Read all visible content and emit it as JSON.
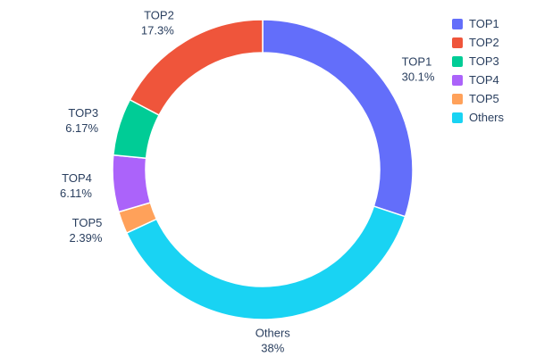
{
  "chart_data": {
    "type": "pie",
    "subtype": "donut",
    "hole": 0.78,
    "labels": [
      "TOP1",
      "TOP2",
      "TOP3",
      "TOP4",
      "TOP5",
      "Others"
    ],
    "values": [
      30.1,
      17.3,
      6.17,
      6.11,
      2.39,
      38
    ],
    "percent_labels": [
      "30.1%",
      "17.3%",
      "6.17%",
      "6.11%",
      "2.39%",
      "38%"
    ],
    "colors": [
      "#636efa",
      "#ef553b",
      "#00cc96",
      "#ab63fa",
      "#ffa15a",
      "#19d3f3"
    ],
    "legend_entries": [
      "TOP1",
      "TOP2",
      "TOP3",
      "TOP4",
      "TOP5",
      "Others"
    ],
    "layout": {
      "title": "",
      "background": "#ffffff",
      "text_color": "#2a3f5f",
      "legend_position": "top-right",
      "labels_position": "outside",
      "draw_order": [
        "TOP1",
        "Others",
        "TOP5",
        "TOP4",
        "TOP3",
        "TOP2"
      ],
      "start_angle": "12-oclock",
      "direction": "clockwise"
    }
  }
}
